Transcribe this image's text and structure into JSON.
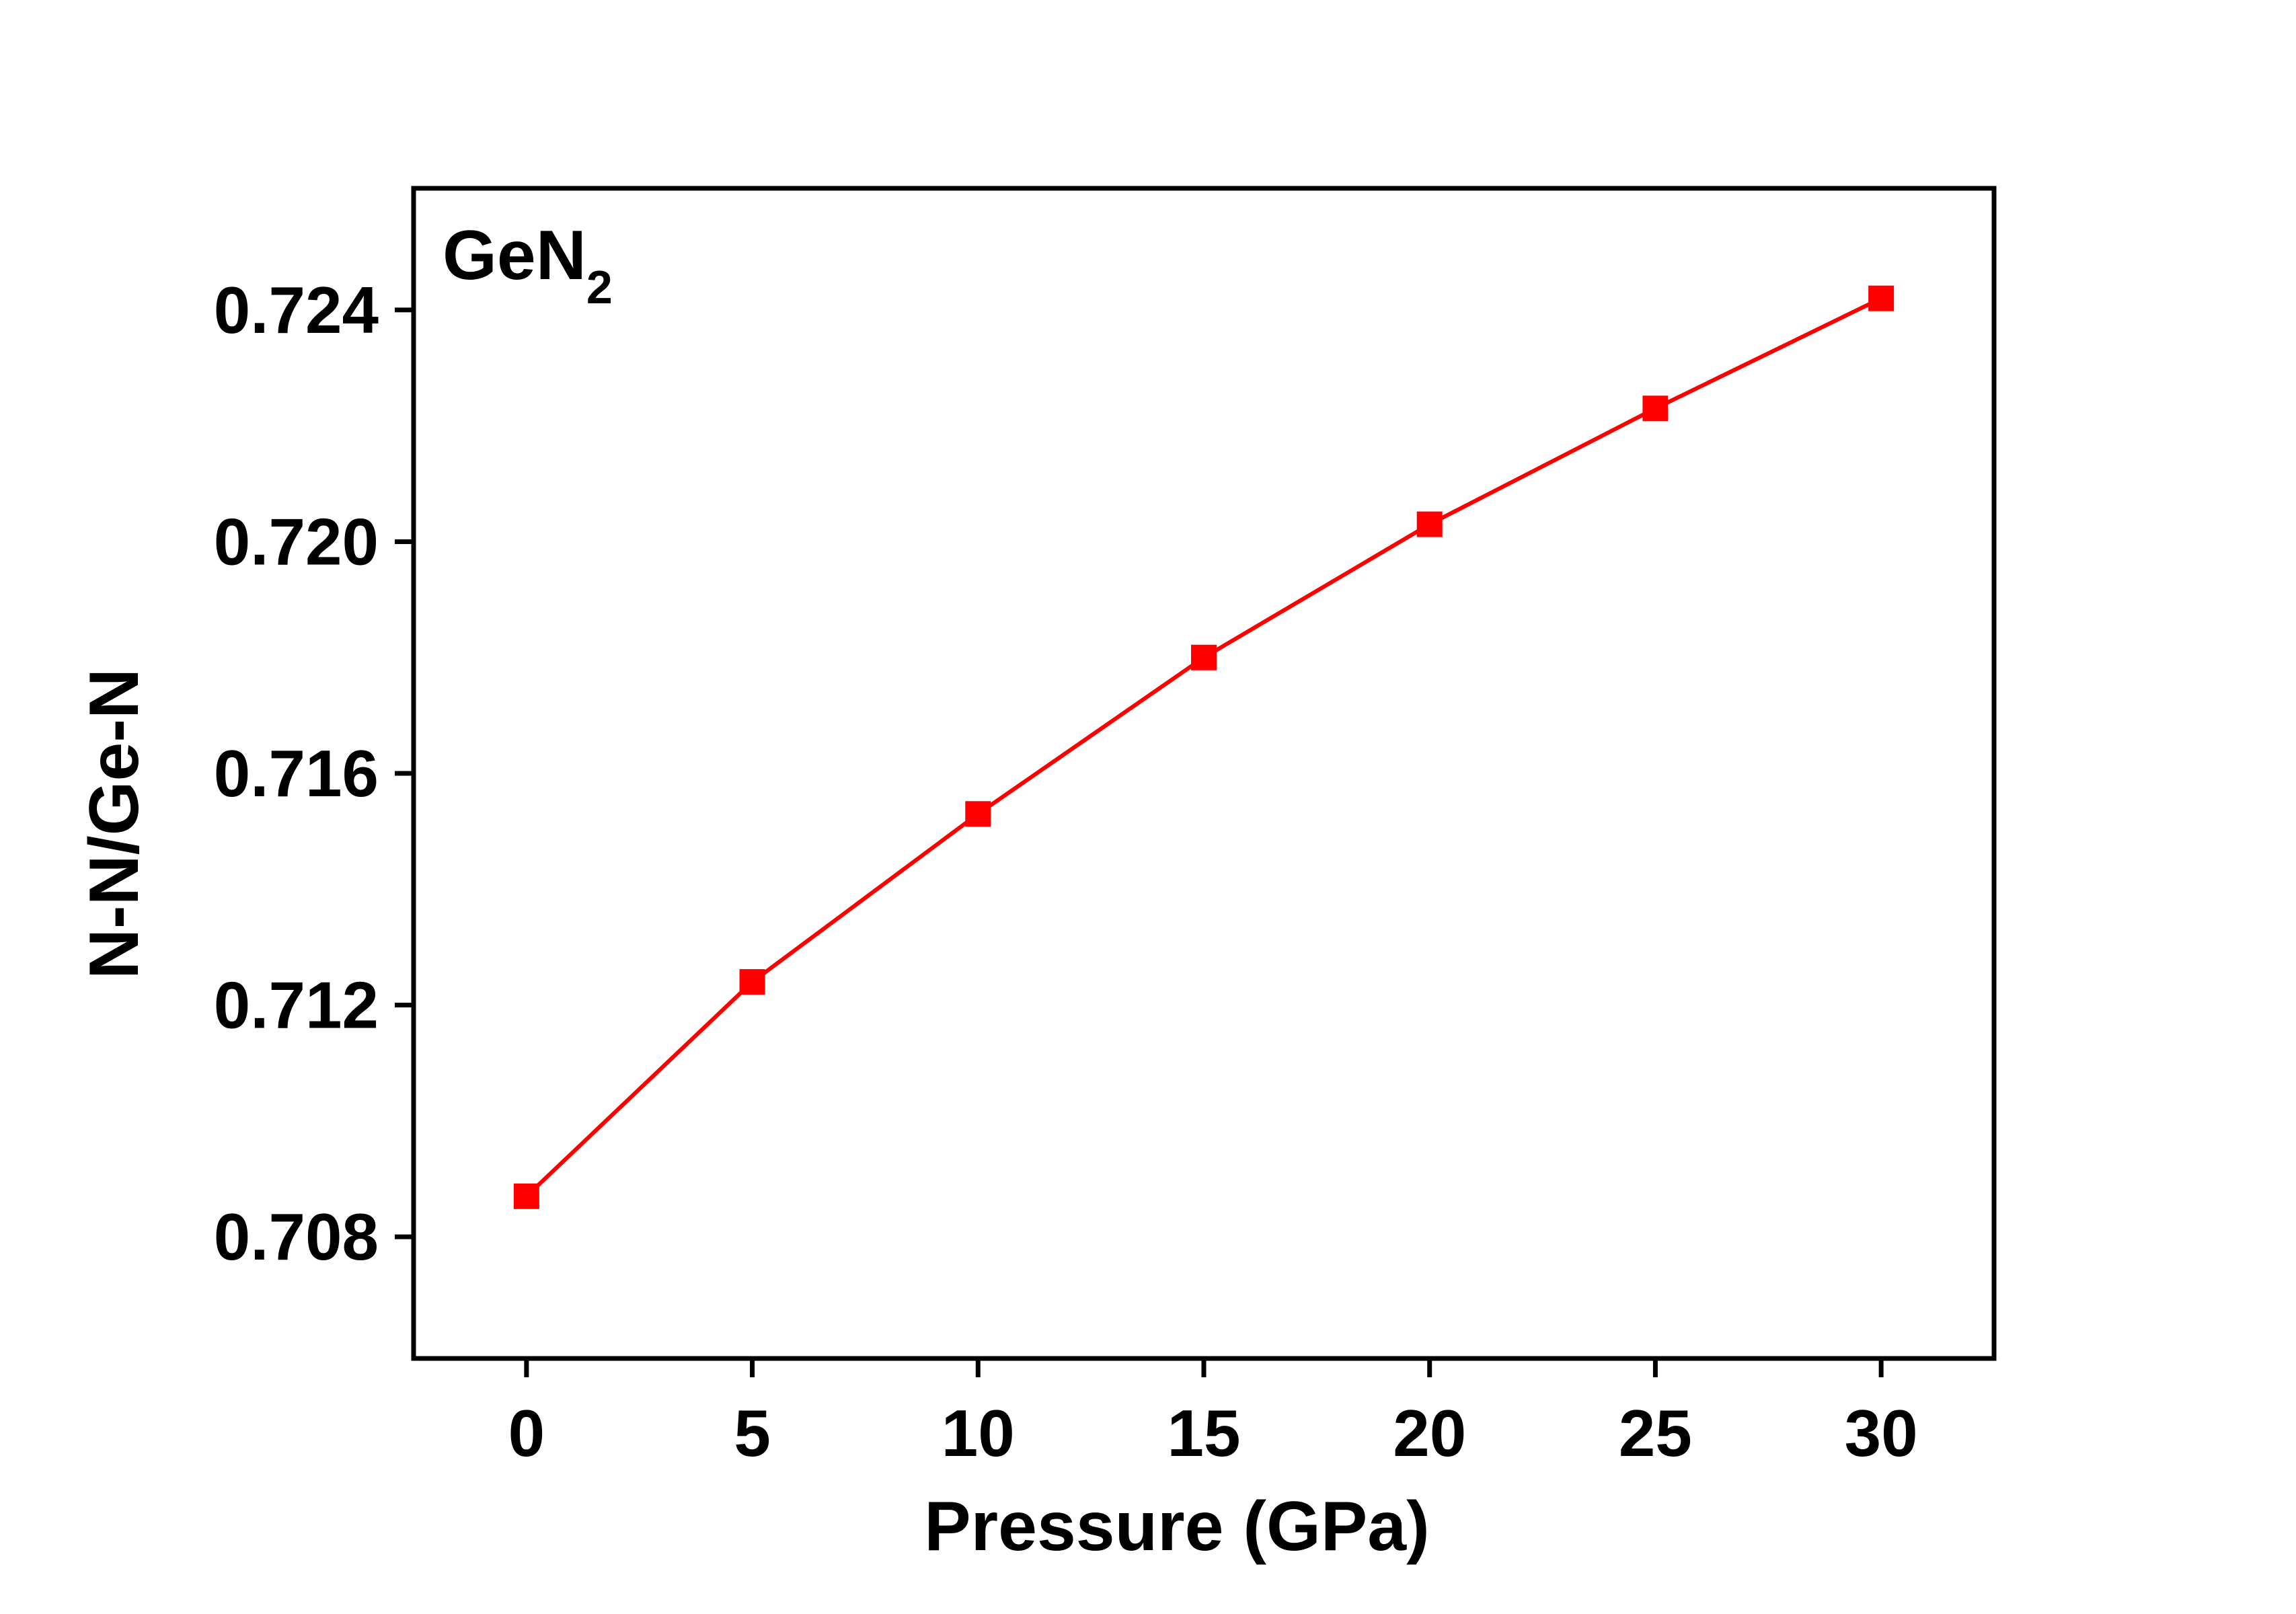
{
  "chart_data": {
    "type": "line",
    "title": "",
    "annotation": {
      "main": "GeN",
      "subscript": "2"
    },
    "xlabel": "Pressure (GPa)",
    "ylabel": "N-N/Ge-N",
    "xlim": [
      -2.5,
      32.5
    ],
    "ylim": [
      0.7059,
      0.7261
    ],
    "xticks": [
      0,
      5,
      10,
      15,
      20,
      25,
      30
    ],
    "xtick_labels": [
      "0",
      "5",
      "10",
      "15",
      "20",
      "25",
      "30"
    ],
    "yticks": [
      0.708,
      0.712,
      0.716,
      0.72,
      0.724
    ],
    "ytick_labels": [
      "0.708",
      "0.712",
      "0.716",
      "0.720",
      "0.724"
    ],
    "grid": false,
    "legend": "none",
    "series": [
      {
        "color": "#ff0000",
        "marker": "square",
        "x": [
          0,
          5,
          10,
          15,
          20,
          25,
          30
        ],
        "y": [
          0.7087,
          0.7124,
          0.7153,
          0.718,
          0.7203,
          0.7223,
          0.7242
        ]
      }
    ]
  }
}
